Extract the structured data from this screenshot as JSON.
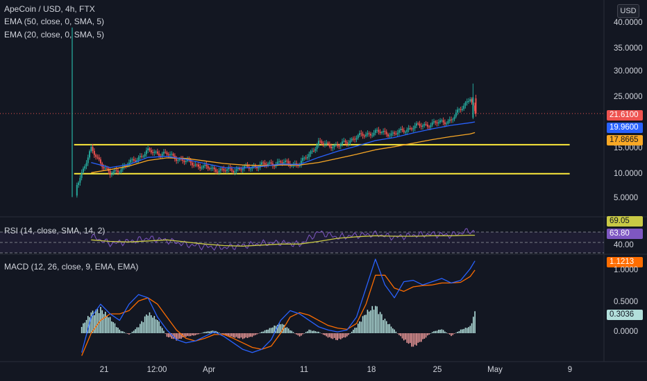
{
  "header": {
    "symbol": "ApeCoin / USD, 4h, FTX",
    "ema50": "EMA (50, close, 0, SMA, 5)",
    "ema20": "EMA (20, close, 0, SMA, 5)",
    "currency": "USD"
  },
  "indicators": {
    "rsi_label": "RSI (14, close, SMA, 14, 2)",
    "macd_label": "MACD (12, 26, close, 9, EMA, EMA)"
  },
  "colors": {
    "background": "#131722",
    "up": "#26a69a",
    "down": "#ef5350",
    "ema_fast": "#2962ff",
    "ema_slow": "#f9a825",
    "support_resistance": "#ffeb3b",
    "rsi": "#7e57c2",
    "rsi_ma": "#c9c945",
    "macd_line": "#2962ff",
    "signal_line": "#ff6d00"
  },
  "price_axis": {
    "ticks": [
      "40.0000",
      "35.0000",
      "30.0000",
      "25.0000",
      "20.0000",
      "15.0000",
      "10.0000",
      "5.0000"
    ],
    "last_price": "21.6100",
    "ema20_value": "19.9600",
    "ema50_value": "17.8665"
  },
  "rsi_axis": {
    "upper_value": "69.05",
    "ma_value": "63.80",
    "tick": "40.00"
  },
  "macd_axis": {
    "ticks": [
      "1.0000",
      "0.5000",
      "0.0000"
    ],
    "macd_value": "1.1213",
    "hist_value": "0.3036"
  },
  "time_axis": {
    "labels": [
      "21",
      "12:00",
      "Apr",
      "11",
      "18",
      "25",
      "May",
      "9"
    ]
  },
  "chart_data": [
    {
      "type": "candlestick",
      "title": "ApeCoin / USD, 4h, FTX",
      "y_range": [
        3.5,
        41
      ],
      "x_range_days": [
        "Mar 17",
        "May 11"
      ],
      "x_days": [
        0,
        2,
        4,
        6,
        8,
        10,
        12,
        14,
        16,
        18,
        20,
        22,
        24,
        26,
        28,
        30,
        32,
        34,
        36,
        38,
        40,
        42,
        42.5
      ],
      "close": [
        5.5,
        14.5,
        9.6,
        11.8,
        14.2,
        13.6,
        12.2,
        11.0,
        10.4,
        10.8,
        11.5,
        12.0,
        11.6,
        15.8,
        15.2,
        17.0,
        18.0,
        17.6,
        19.0,
        19.6,
        20.3,
        24.8,
        21.61
      ],
      "high_annotated": {
        "x_day": 0,
        "value": 38.5
      },
      "ema20": [
        5.5,
        12.0,
        11.0,
        11.6,
        13.0,
        13.2,
        12.6,
        11.8,
        11.0,
        10.9,
        11.2,
        11.7,
        11.6,
        13.0,
        14.2,
        15.2,
        16.3,
        16.9,
        17.8,
        18.6,
        19.3,
        19.8,
        19.96
      ],
      "ema50": [
        5.5,
        10.0,
        10.6,
        11.3,
        12.4,
        12.9,
        12.8,
        12.3,
        11.8,
        11.5,
        11.4,
        11.5,
        11.5,
        12.0,
        12.8,
        13.6,
        14.5,
        15.1,
        15.8,
        16.5,
        17.1,
        17.6,
        17.8665
      ],
      "horizontal_levels": [
        15.5,
        9.8
      ]
    },
    {
      "type": "line",
      "title": "RSI (14, close, SMA, 14, 2)",
      "x_days": [
        2,
        4,
        6,
        8,
        10,
        12,
        14,
        16,
        18,
        20,
        22,
        24,
        26,
        28,
        30,
        32,
        34,
        36,
        38,
        40,
        42,
        42.5
      ],
      "series": [
        {
          "name": "RSI",
          "values": [
            62,
            48,
            52,
            58,
            54,
            46,
            42,
            40,
            44,
            48,
            50,
            46,
            70,
            60,
            64,
            66,
            60,
            64,
            66,
            64,
            73,
            69.05
          ]
        },
        {
          "name": "RSI MA",
          "values": [
            55,
            52,
            51,
            53,
            55,
            51,
            47,
            44,
            43,
            45,
            47,
            47,
            52,
            58,
            61,
            63,
            62,
            62,
            63,
            63,
            64,
            63.8
          ]
        }
      ],
      "levels": [
        70,
        50,
        30
      ]
    },
    {
      "type": "bar",
      "title": "MACD (12, 26, close, 9, EMA, EMA)",
      "x_days": [
        1,
        2,
        3,
        4,
        5,
        6,
        7,
        8,
        9,
        10,
        11,
        12,
        13,
        14,
        15,
        16,
        17,
        18,
        19,
        20,
        21,
        22,
        23,
        24,
        25,
        26,
        27,
        28,
        29,
        30,
        31,
        32,
        33,
        34,
        35,
        36,
        37,
        38,
        39,
        40,
        41,
        42,
        42.5
      ],
      "histogram": [
        0.1,
        0.3,
        0.36,
        0.22,
        0.05,
        -0.02,
        0.1,
        0.3,
        0.2,
        -0.05,
        -0.1,
        -0.05,
        -0.03,
        0.02,
        0.04,
        -0.02,
        -0.06,
        -0.08,
        -0.05,
        0.02,
        0.08,
        0.15,
        0.05,
        -0.05,
        0.05,
        0.02,
        -0.06,
        -0.1,
        -0.05,
        0.1,
        0.3,
        0.4,
        0.2,
        0.05,
        -0.1,
        -0.2,
        -0.1,
        0.02,
        0.06,
        -0.04,
        0.05,
        0.1,
        0.3036
      ],
      "series": [
        {
          "name": "MACD",
          "values": [
            -0.3,
            0.25,
            0.45,
            0.3,
            0.2,
            0.45,
            0.6,
            0.55,
            0.25,
            0.05,
            -0.1,
            -0.15,
            -0.12,
            -0.05,
            0.02,
            -0.05,
            -0.15,
            -0.25,
            -0.3,
            -0.25,
            -0.1,
            0.2,
            0.35,
            0.3,
            0.2,
            0.1,
            0.05,
            0.02,
            0.05,
            0.25,
            0.7,
            1.15,
            0.75,
            0.55,
            0.8,
            0.82,
            0.75,
            0.8,
            0.85,
            0.78,
            0.82,
            1.0,
            1.1213
          ]
        },
        {
          "name": "Signal",
          "values": [
            -0.35,
            0.0,
            0.2,
            0.3,
            0.3,
            0.35,
            0.5,
            0.55,
            0.45,
            0.25,
            0.05,
            -0.08,
            -0.12,
            -0.08,
            -0.02,
            -0.02,
            -0.08,
            -0.15,
            -0.22,
            -0.25,
            -0.2,
            0.0,
            0.25,
            0.32,
            0.28,
            0.2,
            0.12,
            0.08,
            0.06,
            0.15,
            0.45,
            0.9,
            0.9,
            0.7,
            0.65,
            0.72,
            0.74,
            0.75,
            0.78,
            0.78,
            0.79,
            0.88,
            0.98
          ]
        }
      ]
    }
  ]
}
